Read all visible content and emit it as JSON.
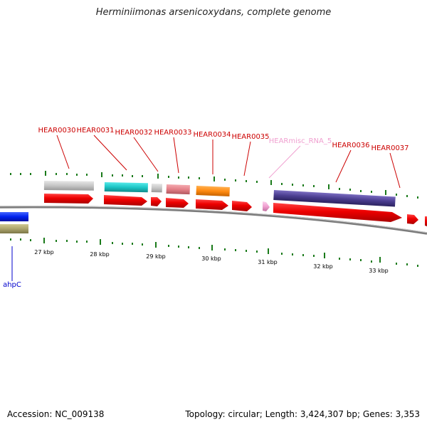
{
  "title": "Herminiimonas arsenicoxydans, complete genome",
  "footer": {
    "accession": "Accession: NC_009138",
    "summary": "Topology: circular; Length: 3,424,307 bp; Genes: 3,353"
  },
  "kbp_labels": [
    "27 kbp",
    "28 kbp",
    "29 kbp",
    "30 kbp",
    "31 kbp",
    "32 kbp",
    "33 kbp"
  ],
  "gene_labels": [
    {
      "name": "HEAR0030",
      "color": "#cc0000"
    },
    {
      "name": "HEAR0031",
      "color": "#cc0000"
    },
    {
      "name": "HEAR0032",
      "color": "#cc0000"
    },
    {
      "name": "HEAR0033",
      "color": "#cc0000"
    },
    {
      "name": "HEAR0034",
      "color": "#cc0000"
    },
    {
      "name": "HEAR0035",
      "color": "#cc0000"
    },
    {
      "name": "HEARmisc_RNA_5",
      "color": "#f0a0c8"
    },
    {
      "name": "HEAR0036",
      "color": "#cc0000"
    },
    {
      "name": "HEAR0037",
      "color": "#cc0000"
    },
    {
      "name": "ahpC",
      "color": "#0000cc"
    }
  ],
  "colors": {
    "gene_red": "#ee1111",
    "backbone": "#888888",
    "tick": "#1a7a1a",
    "feature_gray": "#c8c8c8",
    "feature_cyan": "#22cccc",
    "feature_pink": "#e88890",
    "feature_orange": "#ff8c10",
    "feature_purple": "#4a3d8f",
    "feature_blue": "#0022ee",
    "feature_olive": "#b0a870",
    "misc_rna_pink": "#f0a0d0"
  }
}
